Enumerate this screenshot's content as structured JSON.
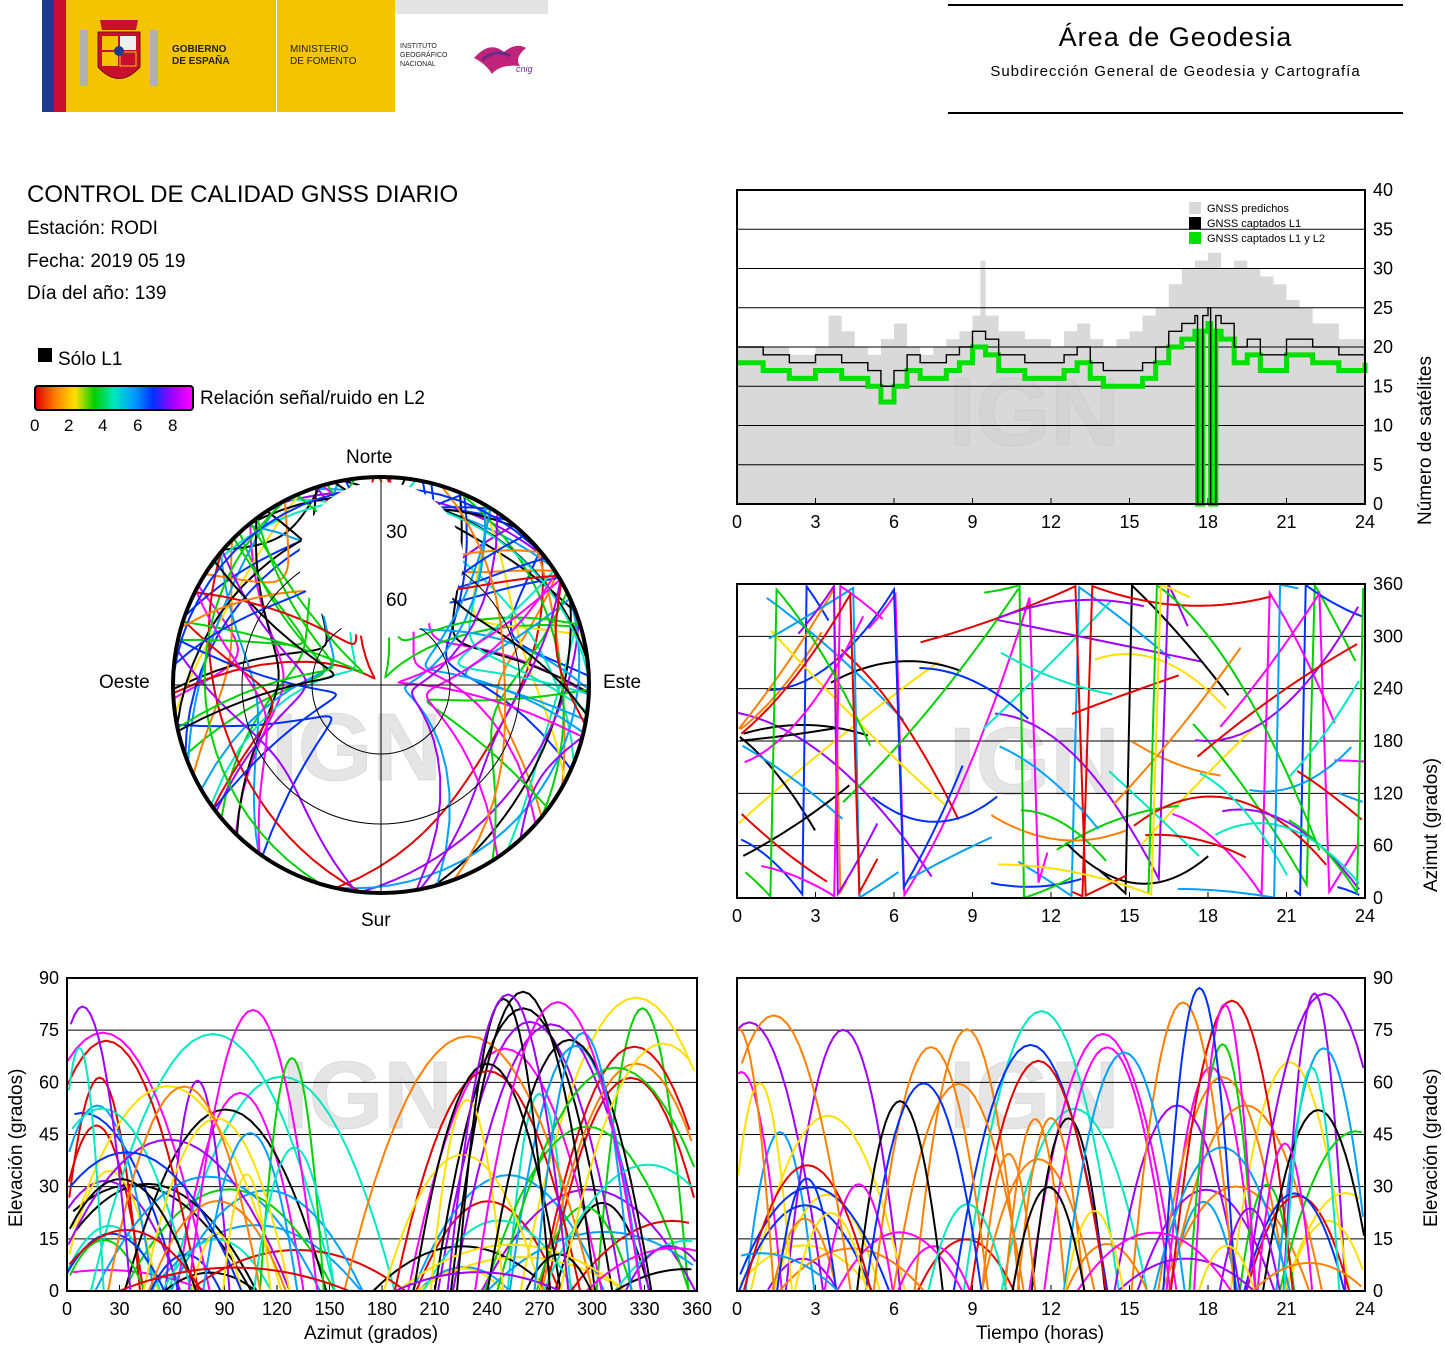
{
  "header": {
    "gobierno": "GOBIERNO\nDE ESPAÑA",
    "ministerio": "MINISTERIO\nDE FOMENTO",
    "ign_text": "INSTITUTO\nGEOGRÁFICO\nNACIONAL",
    "cnig_text": "cnig",
    "area_title": "Área de Geodesia",
    "area_subtitle": "Subdirección General de Geodesia y Cartografía"
  },
  "info": {
    "title": "CONTROL DE CALIDAD GNSS DIARIO",
    "station": "Estación: RODI",
    "date": "Fecha: 2019 05 19",
    "doy": "Día del año: 139"
  },
  "legend": {
    "l1_only": "Sólo L1",
    "snr_label": "Relación señal/ruido en L2",
    "snr_ticks": [
      "0",
      "2",
      "4",
      "6",
      "8"
    ]
  },
  "colors": {
    "l1_only": "#000000",
    "predicted": "#d9d9d9",
    "captured_l1": "#000000",
    "captured_l1_l2": "#00e000",
    "snr_scale": [
      "#e00000",
      "#ff8000",
      "#ffe000",
      "#00d000",
      "#00e8c0",
      "#00a0ff",
      "#0030ff",
      "#a000ff",
      "#ff00ff"
    ]
  },
  "watermark": "IGN",
  "chart_data": [
    {
      "type": "area",
      "id": "satellite-count",
      "ylabel": "Número de satélites",
      "xlim": [
        0,
        24
      ],
      "ylim": [
        0,
        40
      ],
      "xticks": [
        "0",
        "3",
        "6",
        "9",
        "12",
        "15",
        "18",
        "21",
        "24"
      ],
      "yticks": [
        "0",
        "5",
        "10",
        "15",
        "20",
        "25",
        "30",
        "35",
        "40"
      ],
      "grid": true,
      "legend_placement": "top-right",
      "series": [
        {
          "name": "GNSS predichos",
          "x": [
            0,
            1,
            2,
            3,
            3.5,
            4,
            4.5,
            5,
            5.5,
            6,
            6.5,
            7,
            7.5,
            8,
            8.5,
            9,
            9.3,
            9.5,
            10,
            11,
            12,
            12.5,
            13,
            13.5,
            14,
            14.5,
            15,
            15.5,
            16,
            16.5,
            17,
            17.5,
            18,
            18.5,
            19,
            19.5,
            20,
            20.5,
            21,
            21.5,
            22,
            23,
            24
          ],
          "values": [
            20,
            20,
            19,
            20,
            24,
            22,
            20,
            19,
            21,
            23,
            20,
            19,
            20,
            21,
            22,
            24,
            31,
            24,
            22,
            21,
            20,
            22,
            23,
            21,
            20,
            21,
            22,
            24,
            25,
            28,
            30,
            31,
            32,
            30,
            31,
            30,
            29,
            28,
            26,
            25,
            23,
            21,
            20
          ]
        },
        {
          "name": "GNSS captados L1",
          "x": [
            0,
            1,
            2,
            3,
            3.5,
            4,
            4.5,
            5,
            5.5,
            6,
            6.5,
            7,
            7.5,
            8,
            8.5,
            9,
            9.5,
            10,
            11,
            12,
            12.5,
            13,
            13.5,
            14,
            14.5,
            15,
            15.5,
            16,
            16.5,
            17,
            17.5,
            17.6,
            17.8,
            18,
            18.1,
            18.3,
            18.5,
            19,
            19.5,
            20,
            20.5,
            21,
            21.5,
            22,
            23,
            24
          ],
          "values": [
            20,
            19,
            18,
            19,
            19,
            18,
            18,
            17,
            15,
            17,
            19,
            18,
            18,
            19,
            20,
            22,
            21,
            19,
            18,
            18,
            19,
            20,
            18,
            17,
            17,
            17,
            18,
            20,
            22,
            23,
            24,
            0,
            24,
            25,
            0,
            24,
            23,
            20,
            21,
            19,
            19,
            21,
            21,
            20,
            19,
            19
          ]
        },
        {
          "name": "GNSS captados L1 y L2",
          "x": [
            0,
            1,
            2,
            3,
            3.5,
            4,
            4.5,
            5,
            5.5,
            6,
            6.5,
            7,
            7.5,
            8,
            8.5,
            9,
            9.5,
            10,
            11,
            12,
            12.5,
            13,
            13.5,
            14,
            14.5,
            15,
            15.5,
            16,
            16.5,
            17,
            17.5,
            17.6,
            17.8,
            18,
            18.1,
            18.3,
            18.5,
            19,
            19.5,
            20,
            20.5,
            21,
            21.5,
            22,
            23,
            24
          ],
          "values": [
            18,
            17,
            16,
            17,
            17,
            16,
            16,
            15,
            13,
            15,
            17,
            16,
            16,
            17,
            18,
            20,
            19,
            17,
            16,
            16,
            17,
            18,
            16,
            15,
            15,
            15,
            16,
            18,
            20,
            21,
            22,
            0,
            22,
            23,
            0,
            22,
            21,
            18,
            19,
            17,
            17,
            19,
            19,
            18,
            17,
            18
          ]
        }
      ]
    },
    {
      "type": "scatter",
      "id": "azimuth-vs-time",
      "ylabel": "Azimut (grados)",
      "xlim": [
        0,
        24
      ],
      "ylim": [
        0,
        360
      ],
      "xticks": [
        "0",
        "3",
        "6",
        "9",
        "12",
        "15",
        "18",
        "21",
        "24"
      ],
      "yticks": [
        "0",
        "60",
        "120",
        "180",
        "240",
        "300",
        "360"
      ],
      "grid": true
    },
    {
      "type": "scatter",
      "id": "skyplot",
      "direction_labels": {
        "north": "Norte",
        "south": "Sur",
        "west": "Oeste",
        "east": "Este"
      },
      "ring_labels": [
        "30",
        "60"
      ]
    },
    {
      "type": "scatter",
      "id": "elevation-vs-azimuth",
      "xlabel": "Azimut (grados)",
      "ylabel": "Elevación (grados)",
      "xlim": [
        0,
        360
      ],
      "ylim": [
        0,
        90
      ],
      "xticks": [
        "0",
        "30",
        "60",
        "90",
        "120",
        "150",
        "180",
        "210",
        "240",
        "270",
        "300",
        "330",
        "360"
      ],
      "yticks": [
        "0",
        "15",
        "30",
        "45",
        "60",
        "75",
        "90"
      ],
      "grid": true
    },
    {
      "type": "scatter",
      "id": "elevation-vs-time",
      "xlabel": "Tiempo (horas)",
      "ylabel": "Elevación (grados)",
      "xlim": [
        0,
        24
      ],
      "ylim": [
        0,
        90
      ],
      "xticks": [
        "0",
        "3",
        "6",
        "9",
        "12",
        "15",
        "18",
        "21",
        "24"
      ],
      "yticks": [
        "0",
        "15",
        "30",
        "45",
        "60",
        "75",
        "90"
      ],
      "grid": true
    }
  ]
}
